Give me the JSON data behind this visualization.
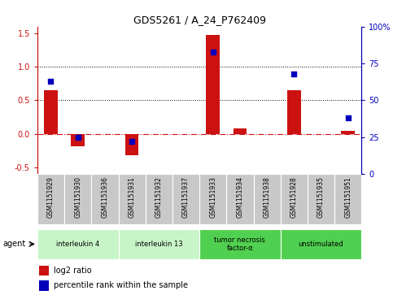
{
  "title": "GDS5261 / A_24_P762409",
  "samples": [
    "GSM1151929",
    "GSM1151930",
    "GSM1151936",
    "GSM1151931",
    "GSM1151932",
    "GSM1151937",
    "GSM1151933",
    "GSM1151934",
    "GSM1151938",
    "GSM1151928",
    "GSM1151935",
    "GSM1151951"
  ],
  "log2_ratio": [
    0.65,
    -0.18,
    0.0,
    -0.32,
    0.0,
    0.0,
    1.48,
    0.08,
    0.0,
    0.65,
    0.0,
    0.05
  ],
  "percentile": [
    63,
    25,
    0,
    22,
    0,
    0,
    83,
    0,
    0,
    68,
    0,
    38
  ],
  "groups": [
    {
      "label": "interleukin 4",
      "start": 0,
      "end": 2,
      "color": "#c8f5c8"
    },
    {
      "label": "interleukin 13",
      "start": 3,
      "end": 5,
      "color": "#c8f5c8"
    },
    {
      "label": "tumor necrosis\nfactor-α",
      "start": 6,
      "end": 8,
      "color": "#50d050"
    },
    {
      "label": "unstimulated",
      "start": 9,
      "end": 11,
      "color": "#50d050"
    }
  ],
  "ylim_left": [
    -0.6,
    1.6
  ],
  "ylim_right": [
    0,
    100
  ],
  "yticks_left": [
    -0.5,
    0.0,
    0.5,
    1.0,
    1.5
  ],
  "yticks_right": [
    0,
    25,
    50,
    75,
    100
  ],
  "bar_color": "#cc1111",
  "dot_color": "#0000bb",
  "bar_width": 0.5,
  "dot_size": 22,
  "hline_color": "#cc1111",
  "dotted_line_color": "#000000",
  "bg_sample": "#c8c8c8"
}
